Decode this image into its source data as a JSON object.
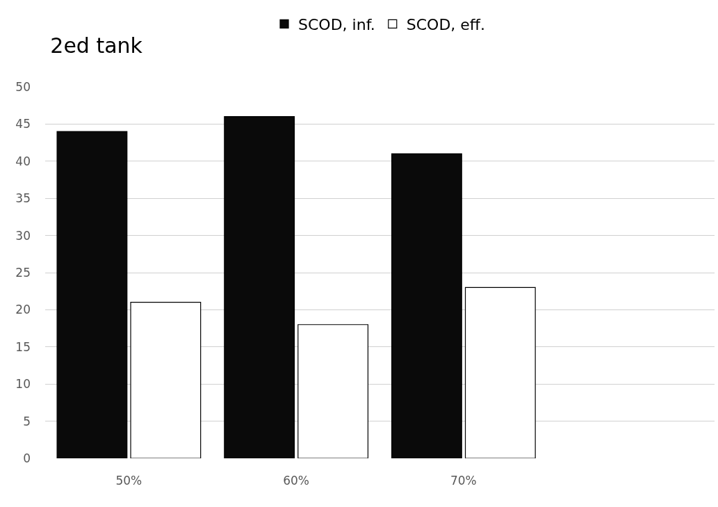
{
  "chart_data": {
    "type": "bar",
    "title": "2ed tank",
    "categories": [
      "50%",
      "60%",
      "70%",
      null
    ],
    "series": [
      {
        "name": "SCOD, inf.",
        "color": "#0a0a0a",
        "values": [
          44,
          46,
          41,
          null
        ]
      },
      {
        "name": "SCOD, eff.",
        "color": "#ffffff",
        "values": [
          21,
          18,
          23,
          null
        ]
      }
    ],
    "ylim": [
      0,
      50
    ],
    "yticks": [
      0,
      5,
      10,
      15,
      20,
      25,
      30,
      35,
      40,
      45,
      50
    ],
    "grid": "y",
    "legend": "top"
  }
}
